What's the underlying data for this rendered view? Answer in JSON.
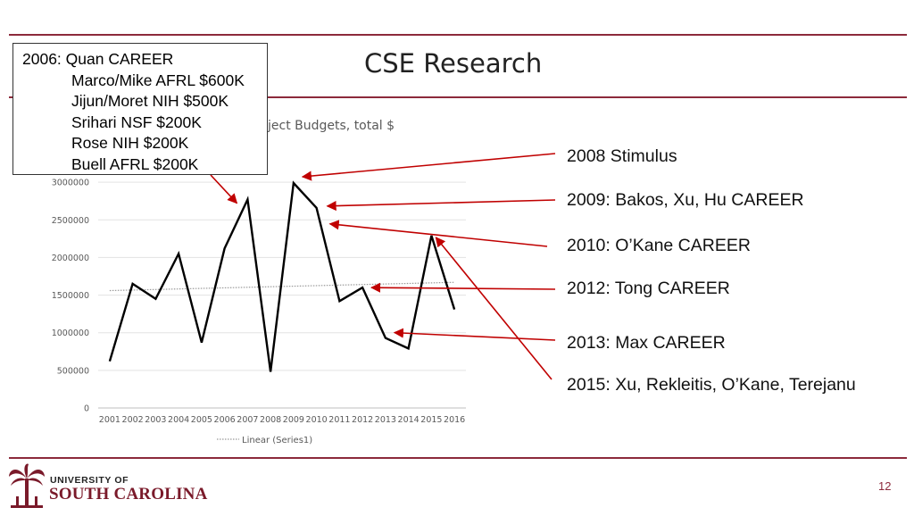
{
  "slide": {
    "title": "CSE Research",
    "page_number": "12"
  },
  "note_box": {
    "lines": [
      "2006: Quan CAREER",
      "Marco/Mike AFRL $600K",
      "Jijun/Moret NIH $500K",
      "Srihari NSF $200K",
      "Rose NIH $200K",
      "Buell AFRL $200K"
    ]
  },
  "annotations": [
    "2008 Stimulus",
    "2009: Bakos, Xu,  Hu CAREER",
    "2010: O’Kane CAREER",
    "2012: Tong CAREER",
    "2013: Max CAREER",
    "2015: Xu, Rekleitis, O’Kane, Terejanu"
  ],
  "footer": {
    "univ_of": "UNIVERSITY OF",
    "univ_name": "SOUTH CAROLINA"
  },
  "colors": {
    "accent": "#8c2a3b",
    "arrow": "#c00000",
    "series": "#000000"
  },
  "chart_data": {
    "type": "line",
    "title_visible_fragment": "ject Budgets, total $",
    "x": [
      "2001",
      "2002",
      "2003",
      "2004",
      "2005",
      "2006",
      "2007",
      "2008",
      "2009",
      "2010",
      "2011",
      "2012",
      "2013",
      "2014",
      "2015",
      "2016"
    ],
    "series": [
      {
        "values": [
          620000,
          1650000,
          1450000,
          2050000,
          870000,
          2120000,
          2770000,
          480000,
          2990000,
          2660000,
          1420000,
          1600000,
          930000,
          790000,
          2290000,
          1310000
        ]
      }
    ],
    "trendline": {
      "name": "Linear (Series1)",
      "start": 1560000,
      "end": 1670000
    },
    "yticks": [
      0,
      500000,
      1000000,
      1500000,
      2000000,
      2500000,
      3000000
    ],
    "ylim": [
      0,
      3500000
    ],
    "grid": true,
    "legend": "bottom"
  }
}
